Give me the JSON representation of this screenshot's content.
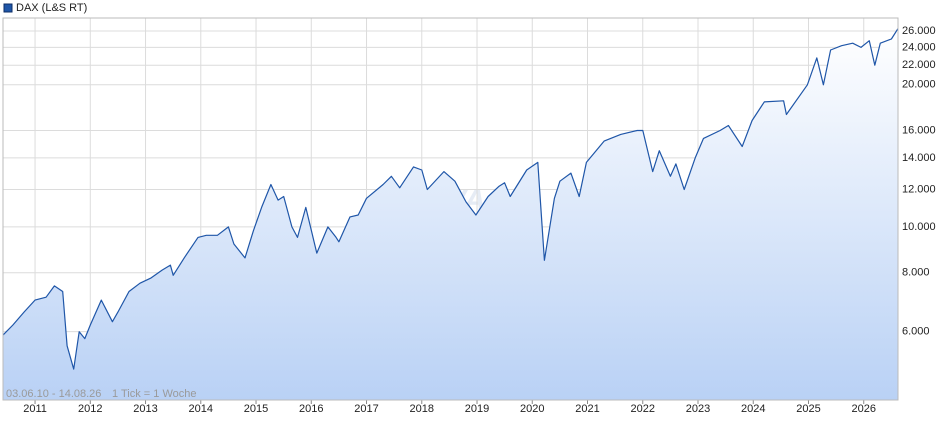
{
  "chart_data": {
    "type": "line",
    "log_scale": true,
    "grid": true,
    "legend_position": "top-left",
    "watermark": "ARIVA",
    "footer": [
      "03.06.10 - 14.08.26",
      "1 Tick = 1 Woche"
    ],
    "xlim": [
      2010.42,
      2026.62
    ],
    "xticks": [
      2011,
      2012,
      2013,
      2014,
      2015,
      2016,
      2017,
      2018,
      2019,
      2020,
      2021,
      2022,
      2023,
      2024,
      2025,
      2026
    ],
    "ylim": [
      4300,
      27700
    ],
    "yticks": [
      {
        "value": 6000,
        "label": "6.000"
      },
      {
        "value": 8000,
        "label": "8.000"
      },
      {
        "value": 10000,
        "label": "10.000"
      },
      {
        "value": 12000,
        "label": "12.000"
      },
      {
        "value": 14000,
        "label": "14.000"
      },
      {
        "value": 16000,
        "label": "16.000"
      },
      {
        "value": 20000,
        "label": "20.000"
      },
      {
        "value": 22000,
        "label": "22.000"
      },
      {
        "value": 24000,
        "label": "24.000"
      },
      {
        "value": 26000,
        "label": "26.000"
      }
    ],
    "x": [
      2010.42,
      2010.6,
      2010.8,
      2011.0,
      2011.2,
      2011.35,
      2011.5,
      2011.58,
      2011.7,
      2011.8,
      2011.9,
      2012.0,
      2012.2,
      2012.4,
      2012.5,
      2012.7,
      2012.9,
      2013.1,
      2013.3,
      2013.45,
      2013.5,
      2013.7,
      2013.95,
      2014.1,
      2014.3,
      2014.5,
      2014.6,
      2014.8,
      2014.95,
      2015.1,
      2015.27,
      2015.4,
      2015.5,
      2015.65,
      2015.75,
      2015.9,
      2016.1,
      2016.3,
      2016.45,
      2016.5,
      2016.7,
      2016.85,
      2017.0,
      2017.3,
      2017.45,
      2017.6,
      2017.85,
      2018.0,
      2018.1,
      2018.4,
      2018.6,
      2018.8,
      2018.98,
      2019.2,
      2019.4,
      2019.5,
      2019.6,
      2019.9,
      2020.1,
      2020.22,
      2020.4,
      2020.5,
      2020.7,
      2020.85,
      2020.98,
      2021.3,
      2021.6,
      2021.9,
      2022.0,
      2022.18,
      2022.3,
      2022.5,
      2022.6,
      2022.75,
      2022.95,
      2023.1,
      2023.4,
      2023.55,
      2023.8,
      2023.98,
      2024.2,
      2024.55,
      2024.6,
      2024.98,
      2025.15,
      2025.27,
      2025.4,
      2025.6,
      2025.8,
      2025.95,
      2026.1,
      2026.2,
      2026.3,
      2026.5,
      2026.62
    ],
    "series": [
      {
        "name": "DAX (L&S RT)",
        "color": "#1f56a8",
        "values": [
          5900,
          6200,
          6600,
          7000,
          7100,
          7500,
          7300,
          5600,
          5000,
          6000,
          5800,
          6200,
          7000,
          6300,
          6600,
          7300,
          7600,
          7800,
          8100,
          8300,
          7900,
          8600,
          9500,
          9600,
          9600,
          10000,
          9200,
          8600,
          9800,
          11000,
          12300,
          11400,
          11600,
          10000,
          9500,
          11000,
          8800,
          10000,
          9500,
          9300,
          10500,
          10600,
          11500,
          12300,
          12800,
          12100,
          13400,
          13200,
          12000,
          13100,
          12500,
          11300,
          10600,
          11600,
          12200,
          12400,
          11600,
          13200,
          13700,
          8500,
          11500,
          12500,
          13000,
          11600,
          13700,
          15200,
          15700,
          16000,
          16000,
          13100,
          14500,
          12800,
          13600,
          12000,
          14000,
          15400,
          16000,
          16400,
          14800,
          16800,
          18400,
          18500,
          17300,
          20000,
          22800,
          20000,
          23700,
          24200,
          24500,
          24000,
          24800,
          22000,
          24500,
          25000,
          26300
        ]
      }
    ]
  }
}
